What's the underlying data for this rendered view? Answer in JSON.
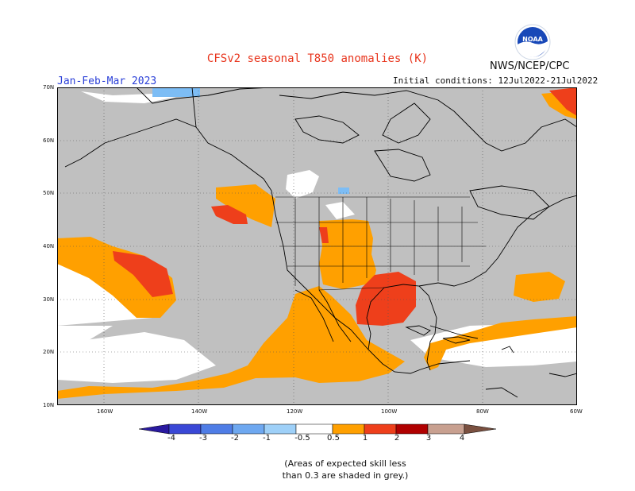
{
  "title": "CFSv2 seasonal T850 anomalies (K)",
  "agency": "NWS/NCEP/CPC",
  "season": "Jan-Feb-Mar 2023",
  "initial_conditions": "Initial conditions: 12Jul2022-21Jul2022",
  "map": {
    "lat_labels": [
      "70N",
      "60N",
      "50N",
      "40N",
      "30N",
      "20N",
      "10N"
    ],
    "lon_labels": [
      "160W",
      "140W",
      "120W",
      "100W",
      "80W",
      "60W"
    ],
    "colors": {
      "grey_low_skill": "#c0c0c0",
      "pos_0_5_1": "#ffa000",
      "pos_1_2": "#ee3f1b",
      "pos_2_3": "#b00000",
      "neg_0_5_1": "#7dbdf5",
      "land_lines": "#000000"
    }
  },
  "colorbar": {
    "ticks": [
      "-4",
      "-3",
      "-2",
      "-1",
      "-0.5",
      "0.5",
      "1",
      "2",
      "3",
      "4"
    ],
    "colors": [
      "#2a1aa0",
      "#3a48d6",
      "#4f7de6",
      "#6ea8f0",
      "#9ed0f8",
      "#ffffff",
      "#ffa000",
      "#ee3f1b",
      "#b00000",
      "#c8a090",
      "#7a5040"
    ]
  },
  "note_line1": "(Areas of expected skill less",
  "note_line2": "than 0.3 are shaded in grey.)"
}
